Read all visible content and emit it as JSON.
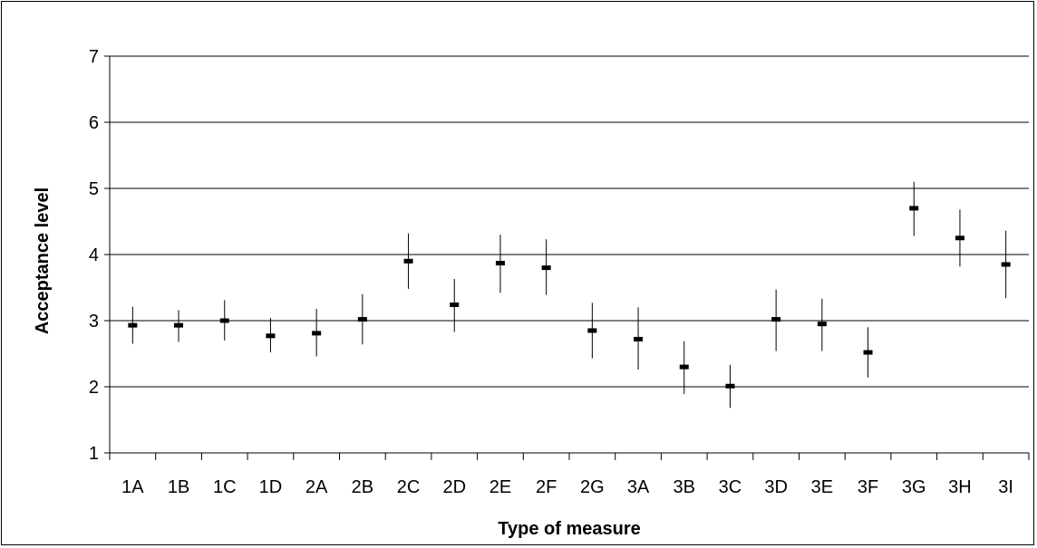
{
  "chart_data": {
    "type": "scatter",
    "title": "",
    "xlabel": "Type of measure",
    "ylabel": "Acceptance level",
    "ylim": [
      1,
      7
    ],
    "yticks": [
      "1",
      "2",
      "3",
      "4",
      "5",
      "6",
      "7"
    ],
    "grid": true,
    "legend": "none",
    "categories": [
      "1A",
      "1B",
      "1C",
      "1D",
      "2A",
      "2B",
      "2C",
      "2D",
      "2E",
      "2F",
      "2G",
      "3A",
      "3B",
      "3C",
      "3D",
      "3E",
      "3F",
      "3G",
      "3H",
      "3I"
    ],
    "series": [
      {
        "mean": [
          2.93,
          2.93,
          3.0,
          2.77,
          2.81,
          3.02,
          3.9,
          3.24,
          3.87,
          3.8,
          2.85,
          2.72,
          2.3,
          2.01,
          3.02,
          2.95,
          2.52,
          4.7,
          4.25,
          3.85
        ],
        "lower": [
          2.65,
          2.68,
          2.7,
          2.52,
          2.46,
          2.64,
          3.48,
          2.83,
          3.42,
          3.39,
          2.43,
          2.26,
          1.89,
          1.68,
          2.54,
          2.54,
          2.14,
          4.28,
          3.82,
          3.34
        ],
        "upper": [
          3.21,
          3.16,
          3.31,
          3.04,
          3.18,
          3.4,
          4.32,
          3.63,
          4.3,
          4.23,
          3.27,
          3.2,
          2.69,
          2.33,
          3.47,
          3.33,
          2.9,
          5.1,
          4.68,
          4.36
        ]
      }
    ],
    "colors": {
      "marker": "#000000",
      "grid": "#000000",
      "axis": "#000000"
    }
  }
}
